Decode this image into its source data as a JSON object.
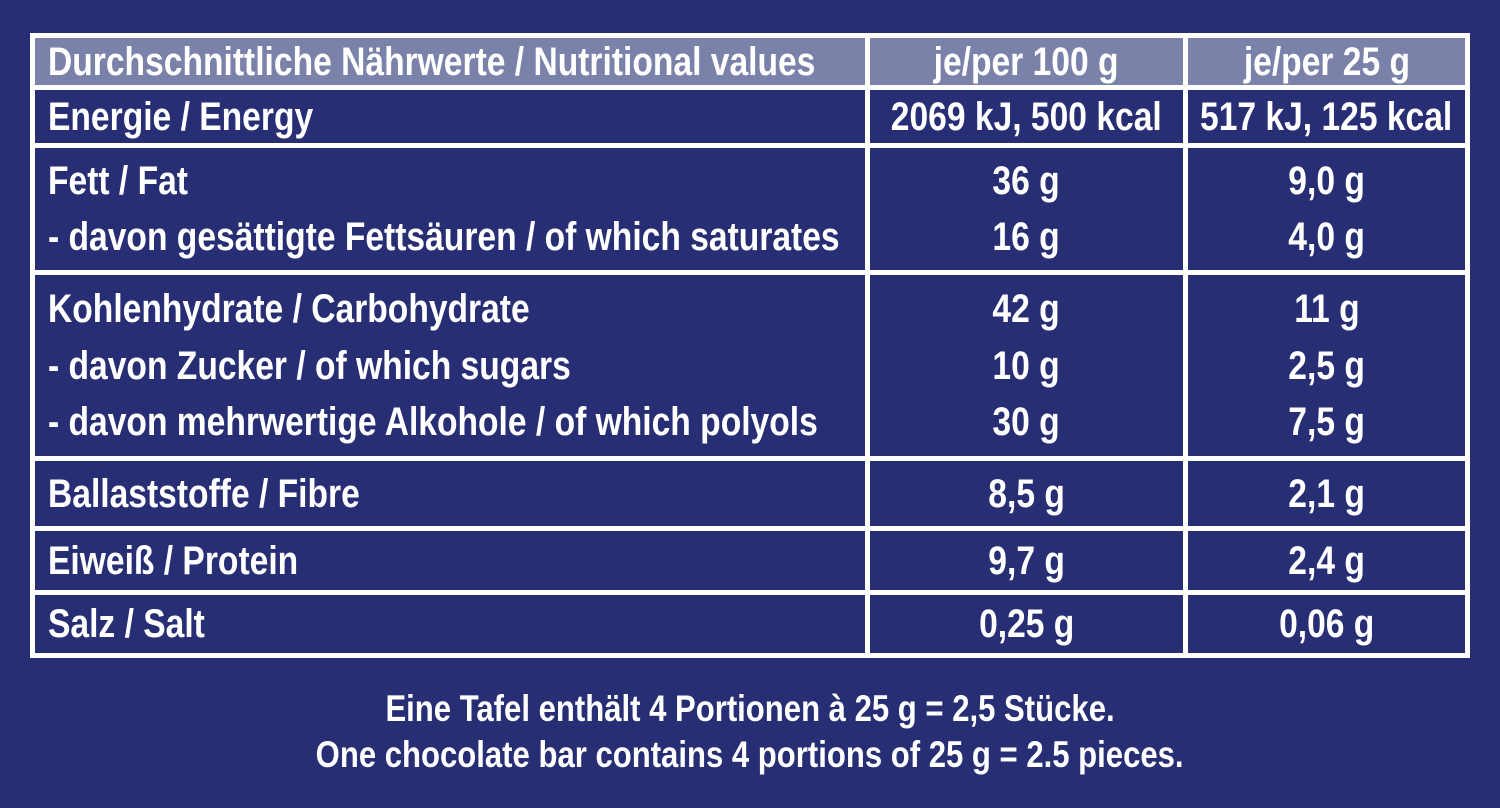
{
  "colors": {
    "background": "#272e74",
    "header_bg": "#7b82aa",
    "border": "#ffffff",
    "text": "#ffffff"
  },
  "table": {
    "header": {
      "title": "Durchschnittliche Nährwerte / Nutritional values",
      "per100": "je/per 100 g",
      "per25": "je/per 25 g"
    },
    "rows": [
      {
        "name": "energy",
        "lines": [
          {
            "label": "Energie / Energy",
            "per100": "2069 kJ, 500 kcal",
            "per25": "517 kJ, 125 kcal"
          }
        ]
      },
      {
        "name": "fat",
        "lines": [
          {
            "label": "Fett / Fat",
            "per100": "36 g",
            "per25": "9,0 g"
          },
          {
            "label": "- davon gesättigte Fettsäuren / of which saturates",
            "per100": "16 g",
            "per25": "4,0 g"
          }
        ]
      },
      {
        "name": "carbohydrate",
        "lines": [
          {
            "label": "Kohlenhydrate / Carbohydrate",
            "per100": "42 g",
            "per25": "11 g"
          },
          {
            "label": "- davon Zucker / of which sugars",
            "per100": "10 g",
            "per25": "2,5 g"
          },
          {
            "label": "- davon mehrwertige Alkohole / of which polyols",
            "per100": "30 g",
            "per25": "7,5 g"
          }
        ]
      },
      {
        "name": "fibre",
        "lines": [
          {
            "label": "Ballaststoffe / Fibre",
            "per100": "8,5 g",
            "per25": "2,1 g"
          }
        ]
      },
      {
        "name": "protein",
        "lines": [
          {
            "label": "Eiweiß / Protein",
            "per100": "9,7 g",
            "per25": "2,4 g"
          }
        ]
      },
      {
        "name": "salt",
        "lines": [
          {
            "label": "Salz / Salt",
            "per100": "0,25 g",
            "per25": "0,06 g"
          }
        ]
      }
    ]
  },
  "footer": {
    "line_de": "Eine Tafel enthält 4 Portionen à 25 g = 2,5 Stücke.",
    "line_en": "One chocolate bar contains 4 portions of 25 g = 2.5 pieces."
  }
}
